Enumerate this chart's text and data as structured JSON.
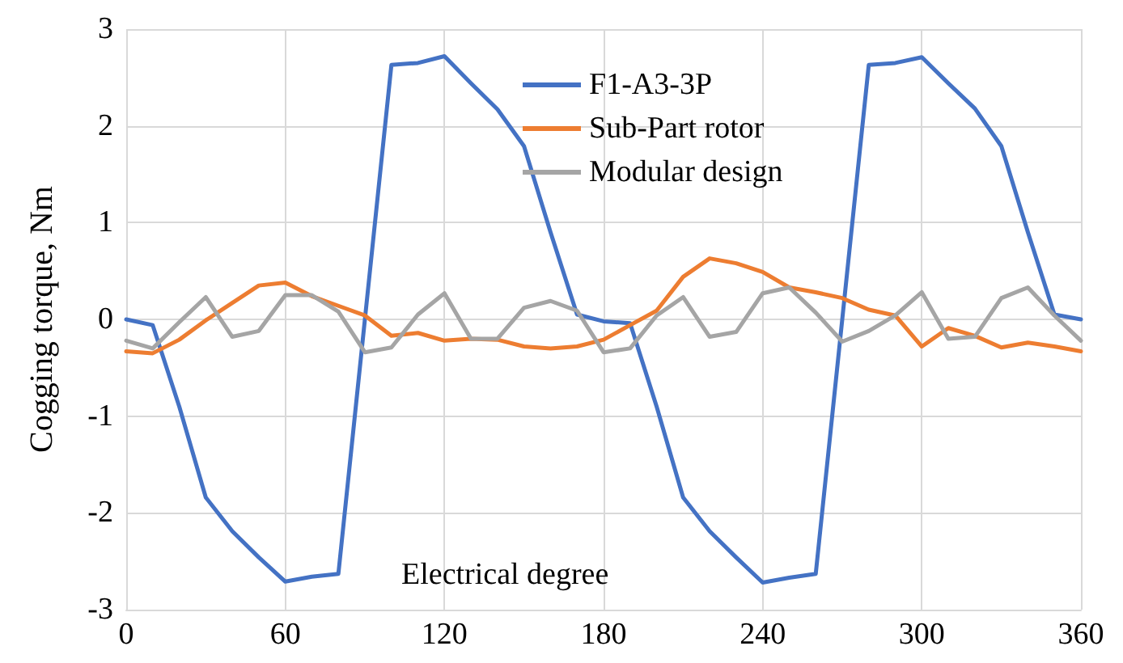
{
  "chart_data": {
    "type": "line",
    "xlabel": "Electrical degree",
    "ylabel": "Cogging torque, Nm",
    "x": [
      0,
      10,
      20,
      30,
      40,
      50,
      60,
      70,
      80,
      90,
      100,
      110,
      120,
      130,
      140,
      150,
      160,
      170,
      180,
      190,
      200,
      210,
      220,
      230,
      240,
      250,
      260,
      270,
      280,
      290,
      300,
      310,
      320,
      330,
      340,
      350,
      360
    ],
    "series": [
      {
        "name": "F1-A3-3P",
        "color": "#4472c4",
        "values": [
          0,
          -0.06,
          -0.9,
          -1.84,
          -2.19,
          -2.46,
          -2.71,
          -2.66,
          -2.63,
          0,
          2.63,
          2.65,
          2.72,
          2.44,
          2.17,
          1.79,
          0.9,
          0.05,
          -0.02,
          -0.04,
          -0.9,
          -1.84,
          -2.19,
          -2.46,
          -2.72,
          -2.67,
          -2.63,
          0,
          2.63,
          2.65,
          2.71,
          2.44,
          2.18,
          1.79,
          0.9,
          0.05,
          0
        ]
      },
      {
        "name": "Sub-Part rotor",
        "color": "#ed7d31",
        "values": [
          -0.33,
          -0.35,
          -0.21,
          -0.01,
          0.17,
          0.35,
          0.38,
          0.24,
          0.14,
          0.04,
          -0.17,
          -0.14,
          -0.22,
          -0.2,
          -0.21,
          -0.28,
          -0.3,
          -0.28,
          -0.21,
          -0.06,
          0.09,
          0.44,
          0.63,
          0.58,
          0.49,
          0.33,
          0.28,
          0.22,
          0.1,
          0.04,
          -0.28,
          -0.09,
          -0.17,
          -0.29,
          -0.24,
          -0.28,
          -0.33
        ]
      },
      {
        "name": "Modular design",
        "color": "#a5a5a5",
        "values": [
          -0.22,
          -0.3,
          -0.03,
          0.23,
          -0.18,
          -0.12,
          0.25,
          0.25,
          0.08,
          -0.34,
          -0.29,
          0.05,
          0.27,
          -0.2,
          -0.2,
          0.12,
          0.19,
          0.09,
          -0.34,
          -0.3,
          0.04,
          0.23,
          -0.18,
          -0.13,
          0.27,
          0.33,
          0.07,
          -0.23,
          -0.12,
          0.04,
          0.28,
          -0.2,
          -0.18,
          0.22,
          0.33,
          0.04,
          -0.22
        ]
      }
    ],
    "xlim": [
      0,
      360
    ],
    "xticks": [
      0,
      60,
      120,
      180,
      240,
      300,
      360
    ],
    "ylim": [
      -3,
      3
    ],
    "yticks": [
      -3,
      -2,
      -1,
      0,
      1,
      2,
      3
    ],
    "grid": true,
    "legend": "top",
    "marker": "none",
    "line_style": "solid"
  }
}
